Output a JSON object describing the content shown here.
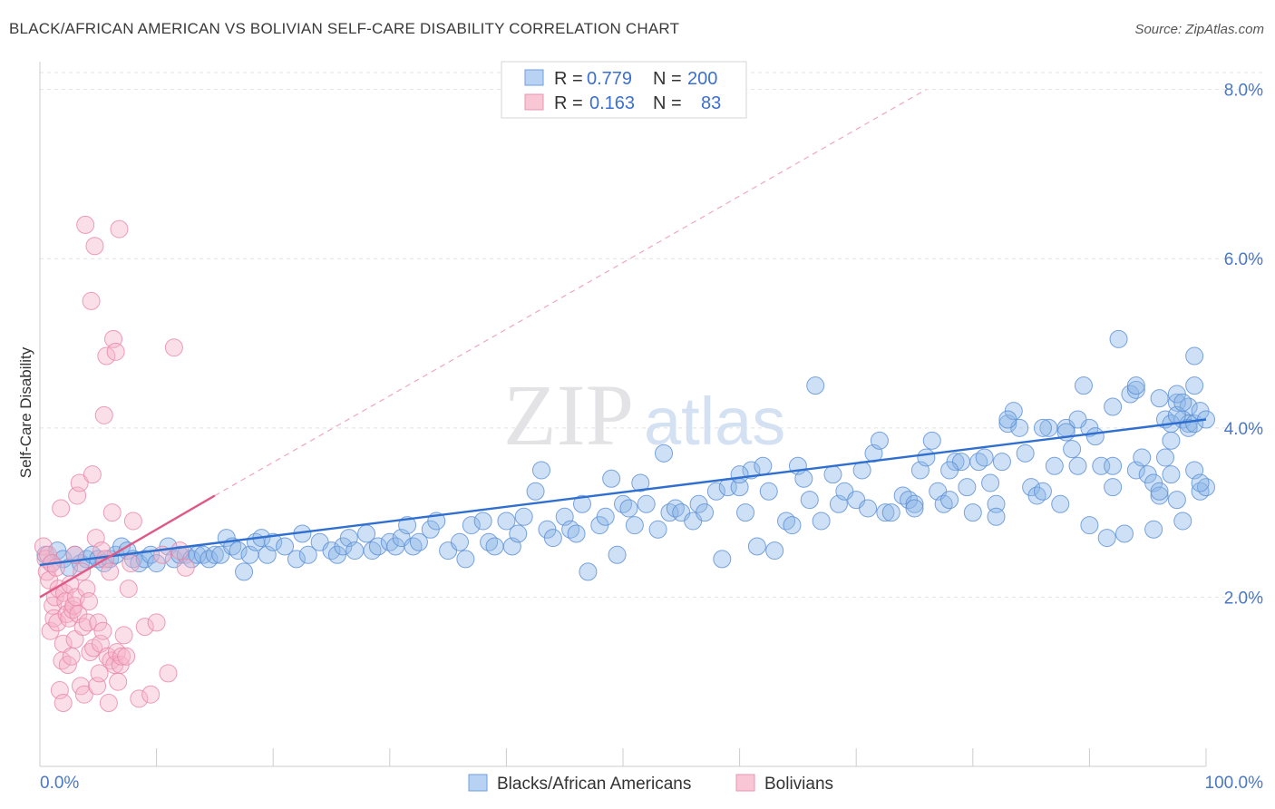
{
  "title": "BLACK/AFRICAN AMERICAN VS BOLIVIAN SELF-CARE DISABILITY CORRELATION CHART",
  "source": "Source: ZipAtlas.com",
  "watermark": {
    "zip": "ZIP",
    "atlas": "atlas"
  },
  "legend_box": {
    "rows": [
      {
        "r_label": "R =",
        "r_value": "0.779",
        "n_label": "N =",
        "n_value": "200"
      },
      {
        "r_label": "R =",
        "r_value": "0.163",
        "n_label": "N =",
        "n_value": "83"
      }
    ]
  },
  "chart_data": {
    "type": "scatter",
    "title": "BLACK/AFRICAN AMERICAN VS BOLIVIAN SELF-CARE DISABILITY CORRELATION CHART",
    "xlabel": "",
    "ylabel": "Self-Care Disability",
    "xlim": [
      0,
      100
    ],
    "ylim": [
      0,
      8.2
    ],
    "x_tick_labels": [
      "0.0%",
      "100.0%"
    ],
    "y_ticks": [
      2,
      4,
      6,
      8
    ],
    "y_tick_labels": [
      "2.0%",
      "4.0%",
      "6.0%",
      "8.0%"
    ],
    "grid": true,
    "legend_position": "bottom",
    "series": [
      {
        "name": "Blacks/African Americans",
        "color": "#8ab4e8",
        "edge": "#5a8fd6",
        "r": 0.779,
        "n": 200,
        "trend": {
          "x": [
            0,
            100
          ],
          "y": [
            2.38,
            4.1
          ],
          "color": "#2f6fd0"
        },
        "points": [
          [
            0.5,
            2.5
          ],
          [
            1.0,
            2.4
          ],
          [
            1.5,
            2.55
          ],
          [
            2.0,
            2.45
          ],
          [
            2.5,
            2.35
          ],
          [
            3.0,
            2.5
          ],
          [
            3.5,
            2.4
          ],
          [
            4.0,
            2.45
          ],
          [
            4.5,
            2.5
          ],
          [
            5.0,
            2.45
          ],
          [
            5.5,
            2.4
          ],
          [
            6.0,
            2.45
          ],
          [
            6.5,
            2.5
          ],
          [
            7.0,
            2.6
          ],
          [
            7.5,
            2.55
          ],
          [
            8.0,
            2.45
          ],
          [
            8.5,
            2.4
          ],
          [
            9.0,
            2.45
          ],
          [
            9.5,
            2.5
          ],
          [
            10.0,
            2.4
          ],
          [
            11.0,
            2.6
          ],
          [
            11.5,
            2.45
          ],
          [
            12.0,
            2.5
          ],
          [
            12.5,
            2.5
          ],
          [
            13.0,
            2.45
          ],
          [
            13.5,
            2.5
          ],
          [
            14.0,
            2.5
          ],
          [
            14.5,
            2.45
          ],
          [
            15.0,
            2.5
          ],
          [
            15.5,
            2.5
          ],
          [
            16.0,
            2.7
          ],
          [
            16.5,
            2.6
          ],
          [
            17.0,
            2.55
          ],
          [
            17.5,
            2.3
          ],
          [
            18.0,
            2.5
          ],
          [
            18.5,
            2.65
          ],
          [
            19.0,
            2.7
          ],
          [
            19.5,
            2.5
          ],
          [
            20.0,
            2.65
          ],
          [
            21.0,
            2.6
          ],
          [
            22.0,
            2.45
          ],
          [
            22.5,
            2.75
          ],
          [
            23.0,
            2.5
          ],
          [
            24.0,
            2.65
          ],
          [
            25.0,
            2.55
          ],
          [
            25.5,
            2.5
          ],
          [
            26.0,
            2.6
          ],
          [
            26.5,
            2.7
          ],
          [
            27.0,
            2.55
          ],
          [
            28.0,
            2.75
          ],
          [
            28.5,
            2.55
          ],
          [
            29.0,
            2.6
          ],
          [
            30.0,
            2.65
          ],
          [
            30.5,
            2.6
          ],
          [
            31.0,
            2.7
          ],
          [
            31.5,
            2.85
          ],
          [
            32.0,
            2.6
          ],
          [
            32.5,
            2.65
          ],
          [
            33.5,
            2.8
          ],
          [
            34.0,
            2.9
          ],
          [
            35.0,
            2.55
          ],
          [
            36.0,
            2.65
          ],
          [
            36.5,
            2.45
          ],
          [
            37.0,
            2.85
          ],
          [
            38.0,
            2.9
          ],
          [
            38.5,
            2.65
          ],
          [
            39.0,
            2.6
          ],
          [
            40.0,
            2.9
          ],
          [
            40.5,
            2.6
          ],
          [
            41.0,
            2.75
          ],
          [
            41.5,
            2.95
          ],
          [
            42.5,
            3.25
          ],
          [
            43.0,
            3.5
          ],
          [
            43.5,
            2.8
          ],
          [
            44.0,
            2.7
          ],
          [
            45.0,
            2.95
          ],
          [
            45.5,
            2.8
          ],
          [
            46.0,
            2.75
          ],
          [
            46.5,
            3.1
          ],
          [
            47.0,
            2.3
          ],
          [
            48.0,
            2.85
          ],
          [
            48.5,
            2.95
          ],
          [
            49.0,
            3.4
          ],
          [
            49.5,
            2.5
          ],
          [
            50.0,
            3.1
          ],
          [
            50.5,
            3.05
          ],
          [
            51.0,
            2.85
          ],
          [
            51.5,
            3.35
          ],
          [
            52.0,
            3.1
          ],
          [
            53.0,
            2.8
          ],
          [
            53.5,
            3.7
          ],
          [
            54.0,
            3.0
          ],
          [
            54.5,
            3.05
          ],
          [
            55.0,
            3.0
          ],
          [
            56.0,
            2.9
          ],
          [
            56.5,
            3.1
          ],
          [
            57.0,
            3.0
          ],
          [
            58.0,
            3.25
          ],
          [
            58.5,
            2.45
          ],
          [
            59.0,
            3.3
          ],
          [
            60.0,
            3.3
          ],
          [
            60.5,
            3.0
          ],
          [
            61.0,
            3.5
          ],
          [
            61.5,
            2.6
          ],
          [
            62.0,
            3.55
          ],
          [
            62.5,
            3.25
          ],
          [
            63.0,
            2.55
          ],
          [
            64.0,
            2.9
          ],
          [
            64.5,
            2.85
          ],
          [
            65.0,
            3.55
          ],
          [
            65.5,
            3.4
          ],
          [
            66.0,
            3.15
          ],
          [
            66.5,
            4.5
          ],
          [
            67.0,
            2.9
          ],
          [
            68.0,
            3.45
          ],
          [
            68.5,
            3.1
          ],
          [
            69.0,
            3.25
          ],
          [
            70.0,
            3.15
          ],
          [
            70.5,
            3.5
          ],
          [
            71.0,
            3.05
          ],
          [
            71.5,
            3.7
          ],
          [
            72.0,
            3.85
          ],
          [
            72.5,
            3.0
          ],
          [
            73.0,
            3.0
          ],
          [
            74.0,
            3.2
          ],
          [
            74.5,
            3.15
          ],
          [
            75.0,
            3.1
          ],
          [
            75.5,
            3.5
          ],
          [
            76.0,
            3.65
          ],
          [
            76.5,
            3.85
          ],
          [
            77.0,
            3.25
          ],
          [
            77.5,
            3.1
          ],
          [
            78.0,
            3.15
          ],
          [
            78.5,
            3.6
          ],
          [
            79.0,
            3.6
          ],
          [
            79.5,
            3.3
          ],
          [
            80.0,
            3.0
          ],
          [
            80.5,
            3.6
          ],
          [
            81.0,
            3.65
          ],
          [
            81.5,
            3.35
          ],
          [
            82.0,
            3.1
          ],
          [
            82.5,
            3.6
          ],
          [
            83.0,
            4.05
          ],
          [
            83.5,
            4.2
          ],
          [
            84.0,
            4.0
          ],
          [
            84.5,
            3.7
          ],
          [
            85.0,
            3.3
          ],
          [
            85.5,
            3.2
          ],
          [
            86.0,
            3.25
          ],
          [
            86.5,
            4.0
          ],
          [
            87.0,
            3.55
          ],
          [
            87.5,
            3.1
          ],
          [
            88.0,
            4.0
          ],
          [
            88.5,
            3.75
          ],
          [
            89.0,
            3.55
          ],
          [
            89.5,
            4.5
          ],
          [
            90.0,
            4.0
          ],
          [
            90.5,
            3.9
          ],
          [
            91.0,
            3.55
          ],
          [
            91.5,
            2.7
          ],
          [
            92.0,
            3.3
          ],
          [
            92.5,
            5.05
          ],
          [
            93.0,
            2.75
          ],
          [
            93.5,
            4.4
          ],
          [
            94.0,
            3.5
          ],
          [
            94.5,
            3.65
          ],
          [
            95.0,
            3.45
          ],
          [
            95.5,
            3.35
          ],
          [
            96.0,
            3.2
          ],
          [
            96.5,
            3.65
          ],
          [
            97.0,
            3.85
          ],
          [
            97.5,
            4.3
          ],
          [
            98.0,
            2.9
          ],
          [
            98.5,
            4.25
          ],
          [
            99.0,
            4.5
          ],
          [
            99.5,
            3.25
          ],
          [
            100.0,
            3.3
          ],
          [
            60.0,
            3.45
          ],
          [
            75.0,
            3.05
          ],
          [
            82.0,
            2.95
          ],
          [
            88.0,
            3.95
          ],
          [
            90.0,
            2.85
          ],
          [
            92.0,
            3.55
          ],
          [
            94.0,
            4.45
          ],
          [
            95.5,
            2.8
          ],
          [
            96.0,
            3.25
          ],
          [
            97.0,
            3.45
          ],
          [
            97.5,
            3.15
          ],
          [
            98.0,
            4.1
          ],
          [
            98.5,
            4.05
          ],
          [
            99.0,
            3.5
          ],
          [
            99.5,
            3.35
          ],
          [
            96.5,
            4.1
          ],
          [
            97.5,
            4.4
          ],
          [
            98.5,
            4.0
          ],
          [
            99.0,
            4.85
          ]
        ],
        "points_far": [
          [
            78.0,
            3.5
          ],
          [
            83.0,
            4.1
          ],
          [
            86.0,
            4.0
          ],
          [
            89.0,
            4.1
          ],
          [
            92.0,
            4.25
          ],
          [
            94.0,
            4.5
          ],
          [
            96.0,
            4.35
          ],
          [
            97.0,
            4.05
          ],
          [
            97.5,
            4.15
          ],
          [
            98.0,
            4.3
          ],
          [
            99.0,
            4.05
          ],
          [
            99.5,
            4.2
          ],
          [
            100.0,
            4.1
          ]
        ]
      },
      {
        "name": "Bolivians",
        "color": "#f5b3c8",
        "edge": "#e886a8",
        "r": 0.163,
        "n": 83,
        "trend": {
          "x": [
            0,
            15
          ],
          "y": [
            2.0,
            3.2
          ],
          "color": "#e05a88"
        },
        "trend_extended": {
          "x": [
            15,
            76
          ],
          "y": [
            3.2,
            8.0
          ],
          "color": "#f0a6c0"
        },
        "points": [
          [
            0.3,
            2.6
          ],
          [
            0.5,
            2.45
          ],
          [
            0.6,
            2.3
          ],
          [
            0.7,
            2.5
          ],
          [
            0.8,
            2.2
          ],
          [
            0.9,
            1.6
          ],
          [
            1.0,
            2.4
          ],
          [
            1.1,
            1.9
          ],
          [
            1.2,
            1.75
          ],
          [
            1.3,
            2.0
          ],
          [
            1.4,
            2.35
          ],
          [
            1.5,
            1.7
          ],
          [
            1.6,
            2.1
          ],
          [
            1.7,
            0.9
          ],
          [
            1.8,
            3.05
          ],
          [
            1.9,
            1.25
          ],
          [
            2.0,
            1.45
          ],
          [
            2.1,
            2.05
          ],
          [
            2.2,
            1.95
          ],
          [
            2.3,
            1.8
          ],
          [
            2.4,
            1.2
          ],
          [
            2.5,
            1.75
          ],
          [
            2.6,
            2.15
          ],
          [
            2.7,
            1.3
          ],
          [
            2.8,
            1.85
          ],
          [
            2.9,
            1.9
          ],
          [
            3.0,
            1.5
          ],
          [
            3.1,
            2.0
          ],
          [
            3.2,
            3.2
          ],
          [
            3.3,
            1.8
          ],
          [
            3.4,
            3.35
          ],
          [
            3.5,
            0.95
          ],
          [
            3.6,
            2.3
          ],
          [
            3.7,
            1.65
          ],
          [
            3.8,
            0.85
          ],
          [
            3.9,
            6.4
          ],
          [
            4.0,
            2.1
          ],
          [
            4.1,
            1.7
          ],
          [
            4.2,
            1.95
          ],
          [
            4.3,
            1.35
          ],
          [
            4.4,
            5.5
          ],
          [
            4.5,
            3.45
          ],
          [
            4.6,
            1.4
          ],
          [
            4.7,
            6.15
          ],
          [
            4.8,
            2.7
          ],
          [
            4.9,
            0.95
          ],
          [
            5.0,
            1.7
          ],
          [
            5.1,
            1.1
          ],
          [
            5.2,
            1.45
          ],
          [
            5.3,
            2.55
          ],
          [
            5.4,
            1.6
          ],
          [
            5.5,
            4.15
          ],
          [
            5.6,
            2.45
          ],
          [
            5.7,
            4.85
          ],
          [
            5.8,
            1.3
          ],
          [
            5.9,
            0.75
          ],
          [
            6.0,
            2.3
          ],
          [
            6.1,
            1.25
          ],
          [
            6.2,
            3.0
          ],
          [
            6.3,
            5.05
          ],
          [
            6.4,
            1.2
          ],
          [
            6.5,
            4.9
          ],
          [
            6.6,
            1.35
          ],
          [
            6.7,
            1.0
          ],
          [
            6.8,
            6.35
          ],
          [
            6.9,
            1.2
          ],
          [
            7.0,
            1.3
          ],
          [
            7.2,
            1.55
          ],
          [
            7.4,
            1.3
          ],
          [
            7.6,
            2.1
          ],
          [
            7.8,
            2.4
          ],
          [
            8.0,
            2.9
          ],
          [
            8.5,
            0.8
          ],
          [
            9.0,
            1.65
          ],
          [
            9.5,
            0.85
          ],
          [
            10.0,
            1.7
          ],
          [
            10.5,
            2.5
          ],
          [
            11.0,
            1.1
          ],
          [
            11.5,
            4.95
          ],
          [
            12.0,
            2.55
          ],
          [
            12.5,
            2.35
          ],
          [
            2.0,
            0.75
          ],
          [
            3.0,
            2.5
          ]
        ]
      }
    ]
  },
  "bottom_legend": [
    {
      "label": "Blacks/African Americans"
    },
    {
      "label": "Bolivians"
    }
  ]
}
